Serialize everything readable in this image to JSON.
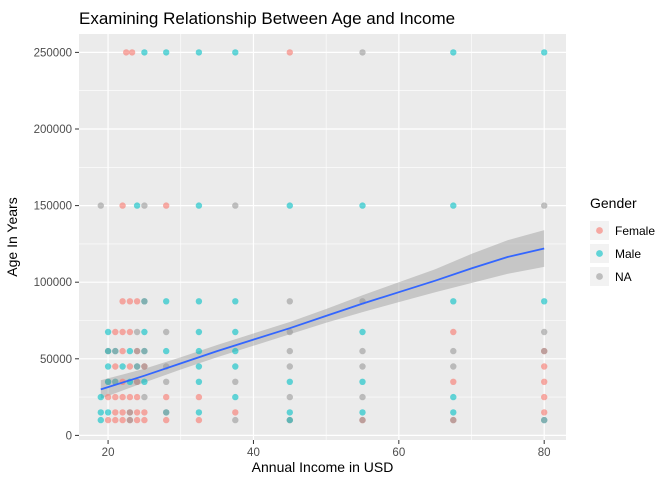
{
  "chart_data": {
    "type": "scatter",
    "title": "Examining Relationship Between Age and Income",
    "xlabel": "Annual Income in USD",
    "ylabel": "Age In Years",
    "xlim": [
      16,
      83
    ],
    "ylim": [
      -3000,
      262000
    ],
    "x_ticks": [
      20,
      40,
      60,
      80
    ],
    "x_tick_labels": [
      "20",
      "40",
      "60",
      "80"
    ],
    "y_ticks": [
      0,
      50000,
      100000,
      150000,
      200000,
      250000
    ],
    "y_tick_labels": [
      "0",
      "50000",
      "100000",
      "150000",
      "200000",
      "250000"
    ],
    "grid": true,
    "legend": {
      "title": "Gender",
      "placement": "right",
      "entries": [
        {
          "label": "Female",
          "color": "#F8766D"
        },
        {
          "label": "Male",
          "color": "#00BFC4"
        },
        {
          "label": "NA",
          "color": "#999999"
        }
      ]
    },
    "series": [
      {
        "name": "Female",
        "color": "#F8766D",
        "points": [
          [
            22.5,
            250000
          ],
          [
            23.3,
            250000
          ],
          [
            45,
            250000
          ],
          [
            22,
            150000
          ],
          [
            28,
            150000
          ],
          [
            22,
            87500
          ],
          [
            23,
            87500
          ],
          [
            24,
            87500
          ],
          [
            21,
            67500
          ],
          [
            22,
            67500
          ],
          [
            23,
            67500
          ],
          [
            67.5,
            67500
          ],
          [
            20,
            55000
          ],
          [
            22,
            55000
          ],
          [
            24,
            55000
          ],
          [
            80,
            55000
          ],
          [
            21,
            45000
          ],
          [
            23,
            45000
          ],
          [
            25,
            45000
          ],
          [
            80,
            45000
          ],
          [
            20,
            35000
          ],
          [
            22,
            35000
          ],
          [
            24,
            35000
          ],
          [
            67.5,
            35000
          ],
          [
            80,
            35000
          ],
          [
            20,
            25000
          ],
          [
            21,
            25000
          ],
          [
            22,
            25000
          ],
          [
            23,
            25000
          ],
          [
            24,
            25000
          ],
          [
            28,
            25000
          ],
          [
            32.5,
            25000
          ],
          [
            80,
            25000
          ],
          [
            21,
            15000
          ],
          [
            22,
            15000
          ],
          [
            23,
            15000
          ],
          [
            24,
            15000
          ],
          [
            25,
            15000
          ],
          [
            37.5,
            15000
          ],
          [
            80,
            15000
          ],
          [
            20,
            10000
          ],
          [
            21,
            10000
          ],
          [
            22,
            10000
          ],
          [
            23,
            10000
          ],
          [
            24,
            10000
          ],
          [
            25,
            10000
          ],
          [
            28,
            10000
          ],
          [
            32.5,
            10000
          ],
          [
            45,
            10000
          ],
          [
            55,
            10000
          ],
          [
            67.5,
            10000
          ]
        ]
      },
      {
        "name": "Male",
        "color": "#00BFC4",
        "points": [
          [
            25,
            250000
          ],
          [
            28,
            250000
          ],
          [
            32.5,
            250000
          ],
          [
            37.5,
            250000
          ],
          [
            67.5,
            250000
          ],
          [
            80,
            250000
          ],
          [
            24,
            150000
          ],
          [
            32.5,
            150000
          ],
          [
            45,
            150000
          ],
          [
            55,
            150000
          ],
          [
            67.5,
            150000
          ],
          [
            25,
            87500
          ],
          [
            28,
            87500
          ],
          [
            32.5,
            87500
          ],
          [
            37.5,
            87500
          ],
          [
            67.5,
            87500
          ],
          [
            80,
            87500
          ],
          [
            20,
            67500
          ],
          [
            25,
            67500
          ],
          [
            32.5,
            67500
          ],
          [
            37.5,
            67500
          ],
          [
            55,
            67500
          ],
          [
            20,
            55000
          ],
          [
            21,
            55000
          ],
          [
            23,
            55000
          ],
          [
            25,
            55000
          ],
          [
            28,
            55000
          ],
          [
            32.5,
            55000
          ],
          [
            37.5,
            55000
          ],
          [
            20,
            45000
          ],
          [
            22,
            45000
          ],
          [
            24,
            45000
          ],
          [
            32.5,
            45000
          ],
          [
            37.5,
            45000
          ],
          [
            20,
            35000
          ],
          [
            21,
            35000
          ],
          [
            23,
            35000
          ],
          [
            25,
            35000
          ],
          [
            32.5,
            35000
          ],
          [
            45,
            35000
          ],
          [
            55,
            35000
          ],
          [
            19,
            25000
          ],
          [
            37.5,
            25000
          ],
          [
            67.5,
            25000
          ],
          [
            19,
            15000
          ],
          [
            20,
            15000
          ],
          [
            28,
            15000
          ],
          [
            32.5,
            15000
          ],
          [
            45,
            15000
          ],
          [
            55,
            15000
          ],
          [
            67.5,
            15000
          ],
          [
            19,
            10000
          ],
          [
            45,
            10000
          ],
          [
            80,
            10000
          ]
        ]
      },
      {
        "name": "NA",
        "color": "#999999",
        "points": [
          [
            55,
            250000
          ],
          [
            19,
            150000
          ],
          [
            25,
            150000
          ],
          [
            37.5,
            150000
          ],
          [
            80,
            150000
          ],
          [
            25,
            87500
          ],
          [
            45,
            87500
          ],
          [
            55,
            87500
          ],
          [
            24,
            67500
          ],
          [
            28,
            67500
          ],
          [
            45,
            67500
          ],
          [
            80,
            67500
          ],
          [
            21,
            55000
          ],
          [
            24,
            55000
          ],
          [
            25,
            55000
          ],
          [
            45,
            55000
          ],
          [
            55,
            55000
          ],
          [
            67.5,
            55000
          ],
          [
            80,
            55000
          ],
          [
            24,
            45000
          ],
          [
            25,
            45000
          ],
          [
            28,
            45000
          ],
          [
            45,
            45000
          ],
          [
            55,
            45000
          ],
          [
            67.5,
            45000
          ],
          [
            21,
            35000
          ],
          [
            24,
            35000
          ],
          [
            28,
            35000
          ],
          [
            37.5,
            35000
          ],
          [
            25,
            25000
          ],
          [
            45,
            25000
          ],
          [
            55,
            25000
          ],
          [
            23,
            15000
          ],
          [
            28,
            15000
          ],
          [
            23,
            10000
          ],
          [
            37.5,
            10000
          ],
          [
            55,
            10000
          ],
          [
            67.5,
            10000
          ],
          [
            80,
            10000
          ]
        ]
      }
    ],
    "trend_line": {
      "color": "#3366FF",
      "band_color": "#999999",
      "x": [
        19,
        25,
        30,
        35,
        40,
        45,
        50,
        55,
        60,
        65,
        70,
        75,
        80
      ],
      "y": [
        30000,
        39000,
        47000,
        55000,
        62500,
        70000,
        78000,
        86000,
        93500,
        101000,
        109000,
        116500,
        122000
      ],
      "lower": [
        24000,
        34500,
        43000,
        51000,
        58500,
        66000,
        73500,
        80500,
        87000,
        93500,
        99500,
        105500,
        110000
      ],
      "upper": [
        36000,
        43500,
        51000,
        59000,
        66500,
        74000,
        82500,
        91500,
        100000,
        108500,
        118500,
        127500,
        134000
      ]
    }
  }
}
